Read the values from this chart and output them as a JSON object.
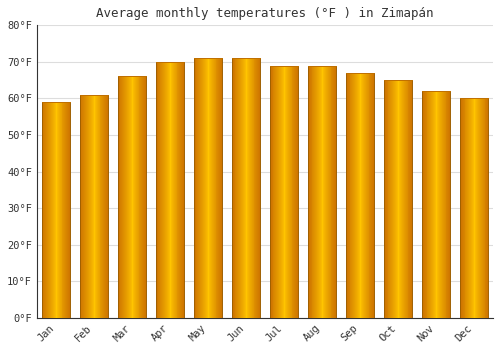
{
  "title": "Average monthly temperatures (°F ) in Zimapán",
  "months": [
    "Jan",
    "Feb",
    "Mar",
    "Apr",
    "May",
    "Jun",
    "Jul",
    "Aug",
    "Sep",
    "Oct",
    "Nov",
    "Dec"
  ],
  "values": [
    59,
    61,
    66,
    70,
    71,
    71,
    69,
    69,
    67,
    65,
    62,
    60
  ],
  "bar_color_center": "#FFD000",
  "bar_color_edge": "#E08000",
  "bar_edge_color": "#B8760A",
  "background_color": "#FFFFFF",
  "plot_bg_color": "#FFFFFF",
  "grid_color": "#DDDDDD",
  "ylim": [
    0,
    80
  ],
  "yticks": [
    0,
    10,
    20,
    30,
    40,
    50,
    60,
    70,
    80
  ],
  "ytick_labels": [
    "0°F",
    "10°F",
    "20°F",
    "30°F",
    "40°F",
    "50°F",
    "60°F",
    "70°F",
    "80°F"
  ],
  "title_fontsize": 9,
  "tick_fontsize": 7.5,
  "font_family": "monospace",
  "bar_width": 0.75
}
